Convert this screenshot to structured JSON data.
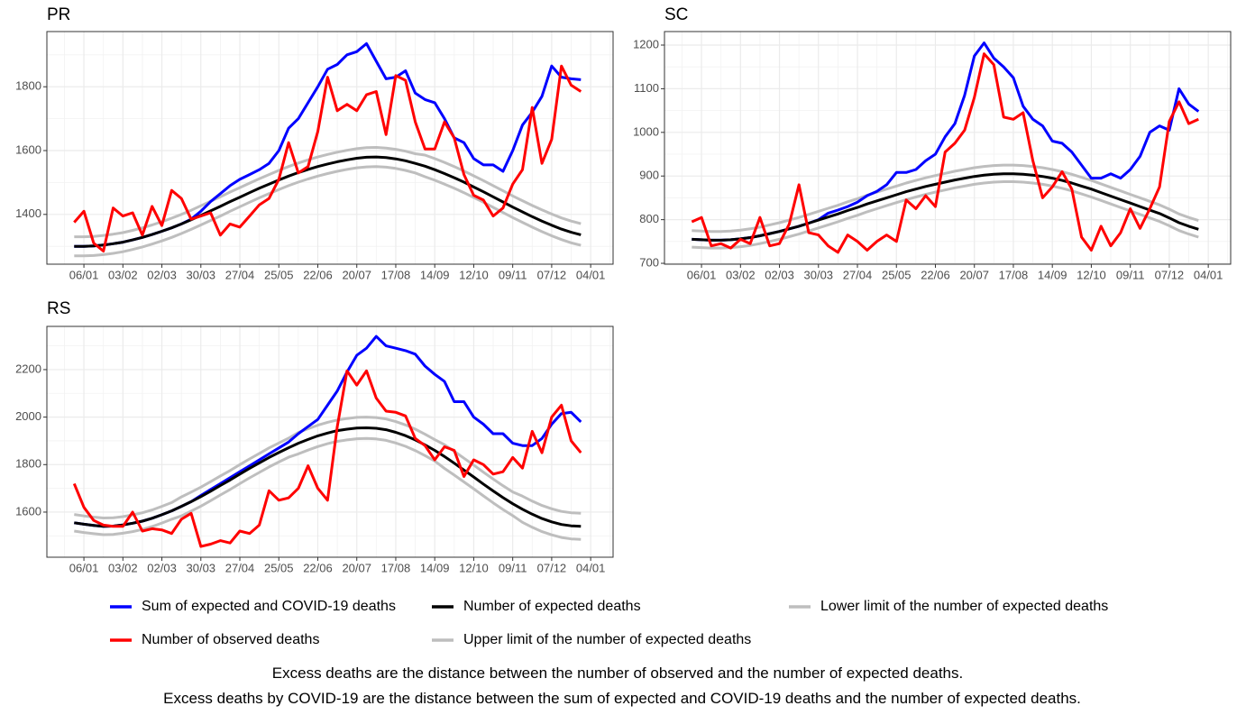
{
  "chart_data": [
    {
      "type": "line",
      "title": "PR",
      "categories": [
        null,
        "06/01",
        null,
        null,
        null,
        "03/02",
        null,
        null,
        null,
        "02/03",
        null,
        null,
        null,
        "30/03",
        null,
        null,
        null,
        "27/04",
        null,
        null,
        null,
        "25/05",
        null,
        null,
        null,
        "22/06",
        null,
        null,
        null,
        "20/07",
        null,
        null,
        null,
        "17/08",
        null,
        null,
        null,
        "14/09",
        null,
        null,
        null,
        "12/10",
        null,
        null,
        null,
        "09/11",
        null,
        null,
        null,
        "07/12",
        null,
        null,
        null,
        "04/01"
      ],
      "ylim": [
        1244,
        1973
      ],
      "yticks": [
        1400,
        1600,
        1800
      ],
      "grid": true,
      "series": [
        {
          "name": "Sum of expected and COVID-19 deaths",
          "color": "#0000ff",
          "values": [
            1300,
            1300,
            1301,
            1304,
            1308,
            1313,
            1320,
            1328,
            1337,
            1347,
            1358,
            1370,
            1385,
            1410,
            1440,
            1465,
            1490,
            1510,
            1525,
            1540,
            1560,
            1600,
            1670,
            1700,
            1750,
            1800,
            1855,
            1870,
            1900,
            1910,
            1935,
            1880,
            1825,
            1830,
            1850,
            1780,
            1760,
            1750,
            1700,
            1640,
            1625,
            1575,
            1555,
            1555,
            1535,
            1600,
            1680,
            1720,
            1770,
            1865,
            1830,
            1825,
            1822,
            null
          ]
        },
        {
          "name": "Number of observed deaths",
          "color": "#ff0000",
          "values": [
            1375,
            1410,
            1310,
            1285,
            1420,
            1395,
            1405,
            1335,
            1425,
            1365,
            1475,
            1450,
            1385,
            1395,
            1405,
            1335,
            1370,
            1360,
            1395,
            1430,
            1450,
            1510,
            1625,
            1530,
            1550,
            1660,
            1830,
            1725,
            1745,
            1725,
            1775,
            1785,
            1650,
            1835,
            1820,
            1690,
            1605,
            1605,
            1690,
            1640,
            1525,
            1460,
            1445,
            1395,
            1420,
            1495,
            1540,
            1735,
            1560,
            1635,
            1865,
            1805,
            1785,
            null
          ]
        },
        {
          "name": "Number of expected deaths",
          "color": "#000000",
          "values": [
            1300,
            1300,
            1301,
            1304,
            1308,
            1313,
            1320,
            1328,
            1337,
            1347,
            1358,
            1370,
            1383,
            1397,
            1411,
            1425,
            1440,
            1454,
            1468,
            1482,
            1495,
            1508,
            1520,
            1531,
            1541,
            1550,
            1558,
            1565,
            1571,
            1576,
            1579,
            1580,
            1578,
            1574,
            1568,
            1560,
            1551,
            1540,
            1528,
            1515,
            1501,
            1486,
            1471,
            1455,
            1439,
            1423,
            1408,
            1393,
            1379,
            1366,
            1354,
            1344,
            1336,
            null
          ]
        },
        {
          "name": "Upper limit of the number of expected deaths",
          "color": "#bebebe",
          "values": [
            1330,
            1330,
            1331,
            1334,
            1338,
            1343,
            1350,
            1358,
            1367,
            1377,
            1388,
            1400,
            1413,
            1427,
            1441,
            1455,
            1470,
            1484,
            1498,
            1512,
            1525,
            1538,
            1550,
            1561,
            1571,
            1580,
            1588,
            1595,
            1601,
            1606,
            1609,
            1610,
            1608,
            1604,
            1598,
            1590,
            1586,
            1575,
            1563,
            1550,
            1536,
            1521,
            1506,
            1490,
            1474,
            1458,
            1443,
            1428,
            1414,
            1401,
            1389,
            1379,
            1371,
            null
          ]
        },
        {
          "name": "Lower limit of the number of expected deaths",
          "color": "#bebebe",
          "values": [
            1270,
            1270,
            1271,
            1274,
            1278,
            1283,
            1290,
            1298,
            1307,
            1317,
            1328,
            1340,
            1353,
            1367,
            1381,
            1395,
            1410,
            1424,
            1438,
            1452,
            1465,
            1478,
            1490,
            1501,
            1511,
            1520,
            1528,
            1535,
            1541,
            1546,
            1549,
            1550,
            1548,
            1544,
            1538,
            1530,
            1518,
            1507,
            1495,
            1482,
            1468,
            1453,
            1438,
            1422,
            1406,
            1390,
            1375,
            1360,
            1346,
            1333,
            1321,
            1311,
            1303,
            null
          ]
        }
      ]
    },
    {
      "type": "line",
      "title": "SC",
      "categories": [
        null,
        "06/01",
        null,
        null,
        null,
        "03/02",
        null,
        null,
        null,
        "02/03",
        null,
        null,
        null,
        "30/03",
        null,
        null,
        null,
        "27/04",
        null,
        null,
        null,
        "25/05",
        null,
        null,
        null,
        "22/06",
        null,
        null,
        null,
        "20/07",
        null,
        null,
        null,
        "17/08",
        null,
        null,
        null,
        "14/09",
        null,
        null,
        null,
        "12/10",
        null,
        null,
        null,
        "09/11",
        null,
        null,
        null,
        "07/12",
        null,
        null,
        null,
        "04/01"
      ],
      "ylim": [
        698,
        1231
      ],
      "yticks": [
        700,
        800,
        900,
        1000,
        1100,
        1200
      ],
      "grid": true,
      "series": [
        {
          "name": "Sum of expected and COVID-19 deaths",
          "color": "#0000ff",
          "values": [
            755,
            754,
            753,
            753,
            754,
            756,
            759,
            763,
            768,
            773,
            779,
            785,
            792,
            800,
            815,
            822,
            830,
            840,
            855,
            865,
            880,
            908,
            908,
            915,
            935,
            950,
            990,
            1020,
            1085,
            1175,
            1205,
            1170,
            1150,
            1125,
            1060,
            1030,
            1015,
            980,
            975,
            955,
            925,
            895,
            895,
            905,
            895,
            915,
            945,
            1000,
            1015,
            1005,
            1100,
            1065,
            1048,
            null
          ]
        },
        {
          "name": "Number of observed deaths",
          "color": "#ff0000",
          "values": [
            795,
            805,
            740,
            745,
            735,
            755,
            745,
            805,
            740,
            745,
            790,
            880,
            770,
            765,
            740,
            725,
            765,
            750,
            730,
            750,
            765,
            750,
            845,
            825,
            855,
            830,
            955,
            975,
            1005,
            1080,
            1180,
            1155,
            1035,
            1030,
            1045,
            935,
            850,
            875,
            910,
            870,
            760,
            730,
            785,
            740,
            770,
            825,
            780,
            825,
            875,
            1025,
            1070,
            1020,
            1030,
            null
          ]
        },
        {
          "name": "Number of expected deaths",
          "color": "#000000",
          "values": [
            755,
            754,
            753,
            753,
            754,
            756,
            759,
            763,
            768,
            773,
            779,
            785,
            792,
            799,
            806,
            813,
            821,
            828,
            836,
            843,
            850,
            857,
            864,
            870,
            876,
            881,
            886,
            891,
            895,
            899,
            902,
            904,
            905,
            905,
            904,
            902,
            899,
            895,
            890,
            884,
            877,
            870,
            862,
            854,
            846,
            838,
            830,
            822,
            814,
            804,
            793,
            785,
            778,
            null
          ]
        },
        {
          "name": "Upper limit of the number of expected deaths",
          "color": "#bebebe",
          "values": [
            775,
            774,
            773,
            773,
            774,
            776,
            779,
            783,
            788,
            793,
            799,
            805,
            812,
            819,
            826,
            833,
            841,
            848,
            856,
            863,
            870,
            877,
            884,
            890,
            896,
            901,
            906,
            911,
            915,
            919,
            922,
            924,
            925,
            925,
            924,
            922,
            919,
            915,
            910,
            904,
            897,
            890,
            882,
            874,
            866,
            858,
            850,
            842,
            834,
            824,
            813,
            805,
            798,
            null
          ]
        },
        {
          "name": "Lower limit of the number of expected deaths",
          "color": "#bebebe",
          "values": [
            737,
            736,
            735,
            735,
            736,
            738,
            741,
            745,
            750,
            755,
            761,
            767,
            774,
            781,
            788,
            795,
            803,
            810,
            818,
            825,
            832,
            839,
            846,
            852,
            858,
            863,
            868,
            873,
            877,
            881,
            884,
            886,
            887,
            887,
            886,
            884,
            881,
            877,
            872,
            866,
            859,
            852,
            844,
            836,
            828,
            820,
            812,
            804,
            796,
            786,
            775,
            767,
            760,
            null
          ]
        }
      ]
    },
    {
      "type": "line",
      "title": "RS",
      "categories": [
        null,
        "06/01",
        null,
        null,
        null,
        "03/02",
        null,
        null,
        null,
        "02/03",
        null,
        null,
        null,
        "30/03",
        null,
        null,
        null,
        "27/04",
        null,
        null,
        null,
        "25/05",
        null,
        null,
        null,
        "22/06",
        null,
        null,
        null,
        "20/07",
        null,
        null,
        null,
        "17/08",
        null,
        null,
        null,
        "14/09",
        null,
        null,
        null,
        "12/10",
        null,
        null,
        null,
        "09/11",
        null,
        null,
        null,
        "07/12",
        null,
        null,
        null,
        "04/01"
      ],
      "ylim": [
        1410,
        2382
      ],
      "yticks": [
        1600,
        1800,
        2000,
        2200
      ],
      "grid": true,
      "series": [
        {
          "name": "Sum of expected and COVID-19 deaths",
          "color": "#0000ff",
          "values": [
            1555,
            1549,
            1544,
            1540,
            1541,
            1546,
            1553,
            1562,
            1574,
            1589,
            1605,
            1624,
            1644,
            1670,
            1695,
            1720,
            1745,
            1770,
            1795,
            1820,
            1845,
            1870,
            1895,
            1930,
            1960,
            1990,
            2050,
            2110,
            2190,
            2260,
            2290,
            2340,
            2300,
            2290,
            2280,
            2265,
            2215,
            2180,
            2150,
            2065,
            2065,
            2000,
            1970,
            1930,
            1930,
            1890,
            1880,
            1880,
            1910,
            1970,
            2015,
            2020,
            1980,
            null
          ]
        },
        {
          "name": "Number of observed deaths",
          "color": "#ff0000",
          "values": [
            1720,
            1620,
            1565,
            1545,
            1540,
            1540,
            1600,
            1520,
            1530,
            1525,
            1510,
            1570,
            1595,
            1455,
            1465,
            1480,
            1470,
            1520,
            1510,
            1545,
            1690,
            1650,
            1660,
            1700,
            1795,
            1700,
            1650,
            1960,
            2195,
            2135,
            2195,
            2080,
            2025,
            2020,
            2005,
            1910,
            1880,
            1820,
            1875,
            1860,
            1750,
            1820,
            1800,
            1760,
            1770,
            1830,
            1785,
            1940,
            1850,
            2000,
            2050,
            1900,
            1850,
            null
          ]
        },
        {
          "name": "Number of expected deaths",
          "color": "#000000",
          "values": [
            1555,
            1549,
            1544,
            1540,
            1541,
            1546,
            1553,
            1562,
            1574,
            1589,
            1605,
            1624,
            1644,
            1665,
            1688,
            1712,
            1735,
            1760,
            1784,
            1807,
            1830,
            1851,
            1871,
            1890,
            1906,
            1921,
            1933,
            1943,
            1949,
            1954,
            1955,
            1953,
            1947,
            1936,
            1922,
            1904,
            1883,
            1860,
            1834,
            1806,
            1777,
            1748,
            1718,
            1689,
            1661,
            1635,
            1612,
            1591,
            1573,
            1559,
            1548,
            1542,
            1540,
            null
          ]
        },
        {
          "name": "Upper limit of the number of expected deaths",
          "color": "#bebebe",
          "values": [
            1590,
            1584,
            1579,
            1575,
            1576,
            1581,
            1588,
            1597,
            1609,
            1624,
            1640,
            1664,
            1684,
            1705,
            1728,
            1752,
            1775,
            1800,
            1824,
            1847,
            1870,
            1891,
            1911,
            1935,
            1951,
            1966,
            1978,
            1988,
            1994,
            1999,
            2000,
            1998,
            1992,
            1981,
            1967,
            1949,
            1928,
            1905,
            1884,
            1856,
            1827,
            1798,
            1768,
            1739,
            1711,
            1685,
            1667,
            1646,
            1628,
            1614,
            1603,
            1597,
            1595,
            null
          ]
        },
        {
          "name": "Lower limit of the number of expected deaths",
          "color": "#bebebe",
          "values": [
            1520,
            1514,
            1509,
            1505,
            1506,
            1511,
            1518,
            1527,
            1539,
            1554,
            1570,
            1584,
            1604,
            1625,
            1648,
            1672,
            1695,
            1720,
            1744,
            1767,
            1790,
            1811,
            1831,
            1845,
            1861,
            1876,
            1888,
            1898,
            1904,
            1909,
            1910,
            1908,
            1902,
            1891,
            1877,
            1859,
            1838,
            1815,
            1784,
            1756,
            1727,
            1698,
            1668,
            1639,
            1611,
            1585,
            1557,
            1536,
            1518,
            1504,
            1493,
            1487,
            1485,
            null
          ]
        }
      ]
    }
  ],
  "notes": [
    "Excess deaths are the distance between the number of observed and the number of expected deaths.",
    "Excess deaths by COVID-19 are the distance between the sum of expected and COVID-19 deaths and the number of expected deaths."
  ]
}
